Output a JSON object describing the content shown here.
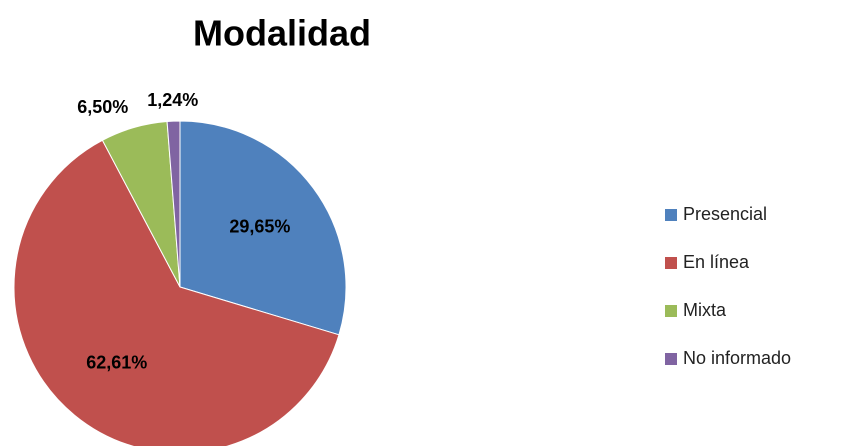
{
  "chart_data": {
    "type": "pie",
    "title": "Modalidad",
    "categories": [
      "Presencial",
      "En línea",
      "Mixta",
      "No informado"
    ],
    "values": [
      29.65,
      62.61,
      6.5,
      1.24
    ],
    "value_labels": [
      "29,65%",
      "62,61%",
      "6,50%",
      "1,24%"
    ],
    "colors": [
      "#4f81bd",
      "#c0504d",
      "#9bbb59",
      "#8064a2"
    ],
    "legend": "right"
  }
}
